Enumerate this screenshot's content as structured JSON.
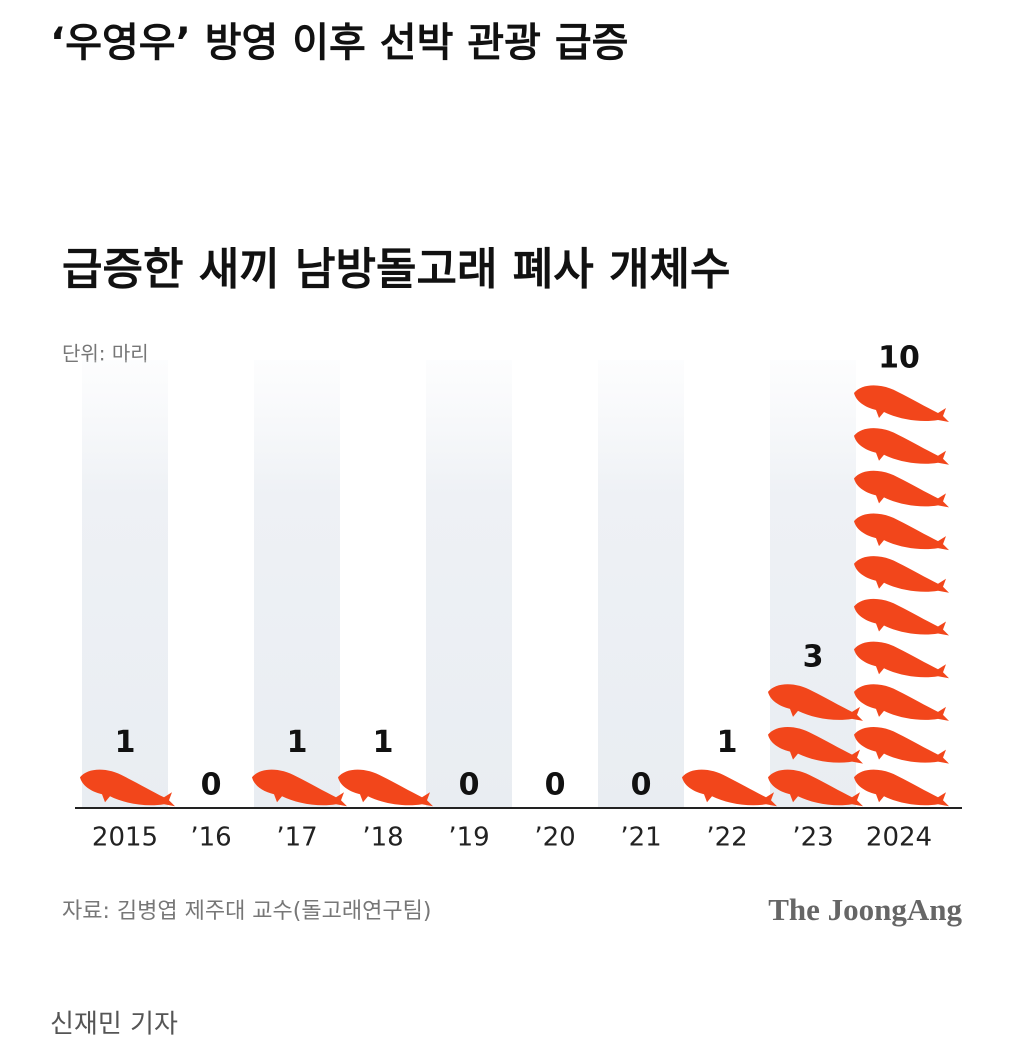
{
  "headline": "‘우영우’ 방영 이후 선박 관광 급증",
  "chart_data": {
    "type": "pictograph",
    "title": "급증한 새끼 남방돌고래 폐사 개체수",
    "unit": "단위: 마리",
    "categories": [
      "2015",
      "’16",
      "’17",
      "’18",
      "’19",
      "’20",
      "’21",
      "’22",
      "’23",
      "2024"
    ],
    "values": [
      1,
      0,
      1,
      1,
      0,
      0,
      0,
      1,
      3,
      10
    ],
    "color": "#f2461b",
    "source": "자료: 김병엽 제주대 교수(돌고래연구팀)",
    "brand": "The JoongAng"
  },
  "byline": "신재민 기자"
}
